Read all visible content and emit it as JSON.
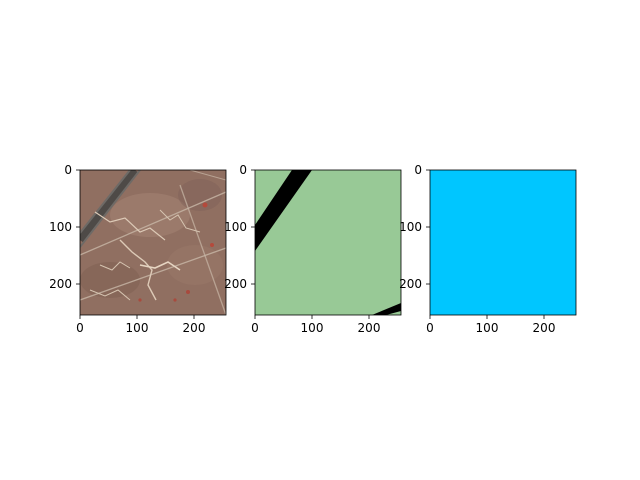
{
  "panels": [
    {
      "id": "satellite",
      "kind": "aerial-image",
      "xticks": [
        "0",
        "100",
        "200"
      ],
      "yticks": [
        "0",
        "100",
        "200"
      ],
      "extent": [
        0,
        255
      ],
      "colors": {
        "ground": "#8a6a5c",
        "ground_light": "#a98878",
        "cracks": "#d8c6b4",
        "road": "#5a5550"
      }
    },
    {
      "id": "mask",
      "kind": "segmentation-mask",
      "xticks": [
        "0",
        "100",
        "200"
      ],
      "yticks": [
        "0",
        "100",
        "200"
      ],
      "extent": [
        0,
        255
      ],
      "colors": {
        "fill": "#98c996",
        "band": "#000000"
      }
    },
    {
      "id": "prediction",
      "kind": "solid-prediction",
      "xticks": [
        "0",
        "100",
        "200"
      ],
      "yticks": [
        "0",
        "100",
        "200"
      ],
      "extent": [
        0,
        255
      ],
      "colors": {
        "fill": "#00c6ff"
      }
    }
  ]
}
